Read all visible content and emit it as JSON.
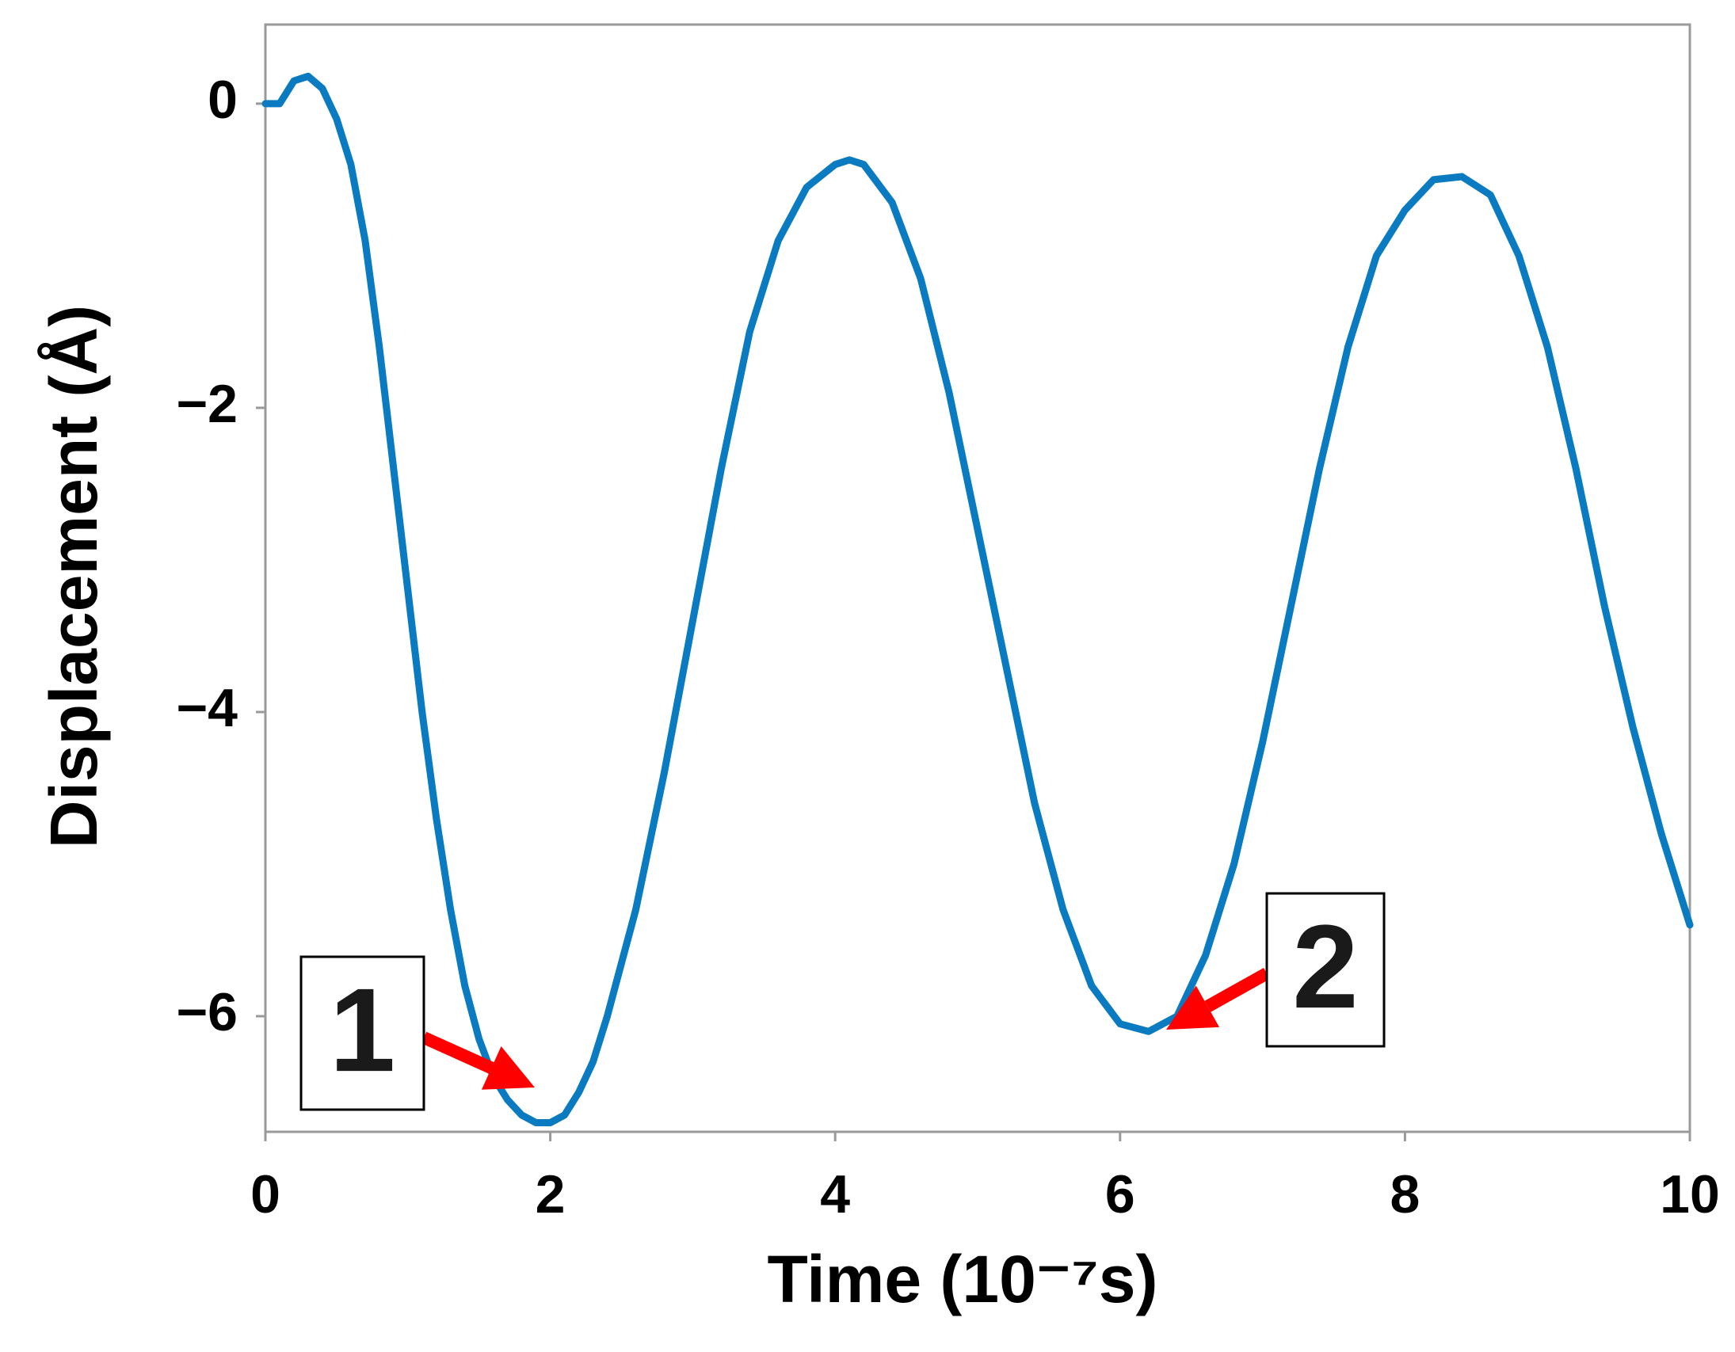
{
  "chart_data": {
    "type": "line",
    "xlabel": "Time  (10⁻⁷s)",
    "ylabel": "Displacement (Å)",
    "x": [
      0,
      0.1,
      0.2,
      0.3,
      0.4,
      0.5,
      0.6,
      0.7,
      0.8,
      0.9,
      1.0,
      1.1,
      1.2,
      1.3,
      1.4,
      1.5,
      1.6,
      1.7,
      1.8,
      1.9,
      2.0,
      2.1,
      2.2,
      2.3,
      2.4,
      2.6,
      2.8,
      3.0,
      3.2,
      3.4,
      3.6,
      3.8,
      4.0,
      4.1,
      4.2,
      4.4,
      4.6,
      4.8,
      5.0,
      5.2,
      5.4,
      5.6,
      5.8,
      6.0,
      6.2,
      6.4,
      6.6,
      6.8,
      7.0,
      7.2,
      7.4,
      7.6,
      7.8,
      8.0,
      8.2,
      8.4,
      8.6,
      8.8,
      9.0,
      9.2,
      9.4,
      9.6,
      9.8,
      10.0
    ],
    "series": [
      {
        "color": "#0a7bc1",
        "values": [
          0,
          0,
          0.15,
          0.18,
          0.1,
          -0.1,
          -0.4,
          -0.9,
          -1.6,
          -2.4,
          -3.2,
          -4.0,
          -4.7,
          -5.3,
          -5.8,
          -6.15,
          -6.4,
          -6.55,
          -6.65,
          -6.7,
          -6.7,
          -6.65,
          -6.5,
          -6.3,
          -6.0,
          -5.3,
          -4.4,
          -3.4,
          -2.4,
          -1.5,
          -0.9,
          -0.55,
          -0.4,
          -0.37,
          -0.4,
          -0.65,
          -1.15,
          -1.9,
          -2.8,
          -3.7,
          -4.6,
          -5.3,
          -5.8,
          -6.05,
          -6.1,
          -6.0,
          -5.6,
          -5.0,
          -4.2,
          -3.3,
          -2.4,
          -1.6,
          -1.0,
          -0.7,
          -0.5,
          -0.48,
          -0.6,
          -1.0,
          -1.6,
          -2.4,
          -3.3,
          -4.1,
          -4.8,
          -5.4
        ]
      }
    ],
    "xlim": [
      0,
      10
    ],
    "xticks": [
      0,
      2,
      4,
      6,
      8,
      10
    ],
    "ylim": [
      -6.76,
      0.52
    ],
    "yticks": [
      0,
      {
        "value": -2,
        "label": "−2"
      },
      {
        "value": -4,
        "label": "−4"
      },
      {
        "value": -6,
        "label": "−6"
      }
    ],
    "annotations": [
      {
        "text": "1",
        "color": "#ff0000"
      },
      {
        "text": "2",
        "color": "#ff0000"
      }
    ]
  }
}
